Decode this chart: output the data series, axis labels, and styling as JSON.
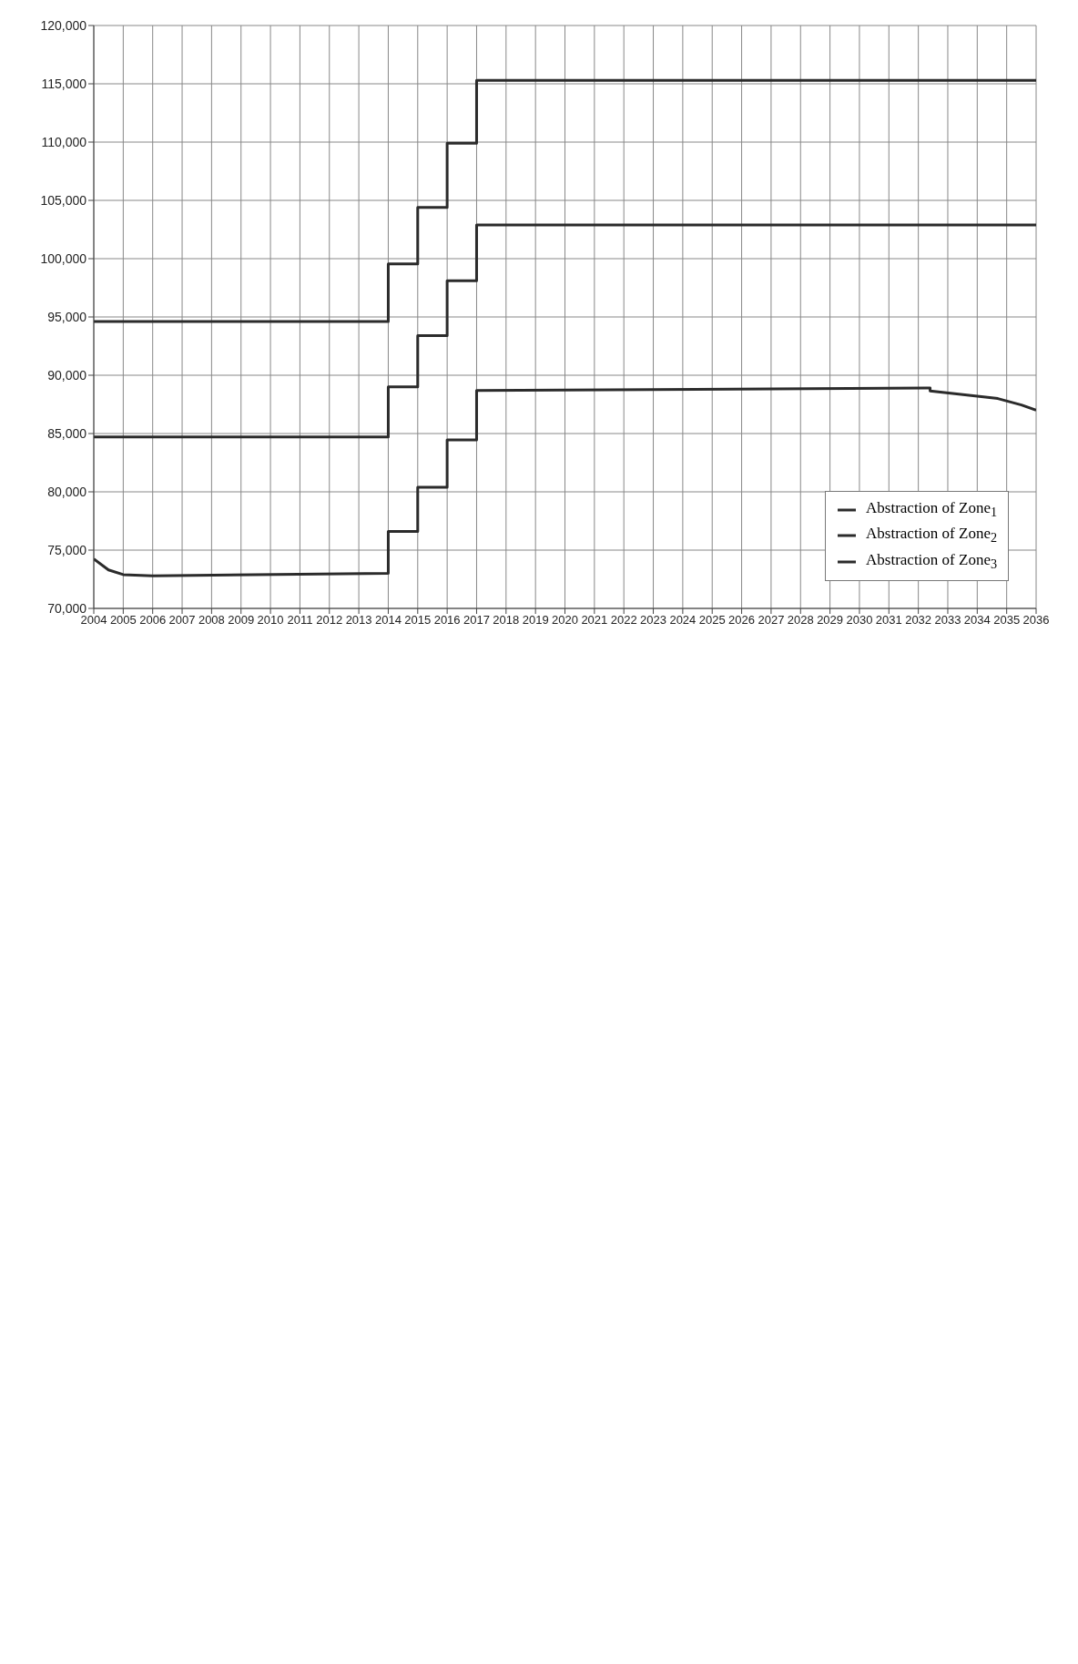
{
  "chart_data": {
    "type": "line",
    "series": [
      {
        "name": "Abstraction of Zone$_{1}$",
        "color": "#2b2b2b",
        "x": [
          2004,
          2014,
          2014,
          2015,
          2015,
          2016,
          2016,
          2017,
          2017,
          2036
        ],
        "values": [
          94600,
          94600,
          99550,
          99550,
          104400,
          104400,
          109900,
          109900,
          115300,
          115300
        ]
      },
      {
        "name": "Abstraction of Zone$_{2}$",
        "color": "#2b2b2b",
        "x": [
          2004,
          2014,
          2014,
          2015,
          2015,
          2016,
          2016,
          2017,
          2017,
          2036
        ],
        "values": [
          84700,
          84700,
          89000,
          89000,
          93400,
          93400,
          98100,
          98100,
          102900,
          102900
        ]
      },
      {
        "name": "Abstraction of Zone$_{3}$",
        "color": "#2b2b2b",
        "x": [
          2004,
          2004.5,
          2005,
          2006,
          2014,
          2014,
          2015,
          2015,
          2016,
          2016,
          2017,
          2017,
          2032.4,
          2032.4,
          2034.7,
          2035.5,
          2036
        ],
        "values": [
          74250,
          73300,
          72900,
          72800,
          73000,
          76600,
          76600,
          80400,
          80400,
          84450,
          84450,
          88700,
          88900,
          88650,
          88000,
          87450,
          87000
        ]
      }
    ],
    "xlim": [
      2004,
      2036
    ],
    "xticks": [
      2004,
      2005,
      2006,
      2007,
      2008,
      2009,
      2010,
      2011,
      2012,
      2013,
      2014,
      2015,
      2016,
      2017,
      2018,
      2019,
      2020,
      2021,
      2022,
      2023,
      2024,
      2025,
      2026,
      2027,
      2028,
      2029,
      2030,
      2031,
      2032,
      2033,
      2034,
      2035,
      2036
    ],
    "ylim": [
      70000,
      120000
    ],
    "yticks": [
      {
        "value": 70000,
        "label": "70,000"
      },
      {
        "value": 75000,
        "label": "75,000"
      },
      {
        "value": 80000,
        "label": "80,000"
      },
      {
        "value": 85000,
        "label": "85,000"
      },
      {
        "value": 90000,
        "label": "90,000"
      },
      {
        "value": 95000,
        "label": "95,000"
      },
      {
        "value": 100000,
        "label": "100,000"
      },
      {
        "value": 105000,
        "label": "105,000"
      },
      {
        "value": 110000,
        "label": "110,000"
      },
      {
        "value": 115000,
        "label": "115,000"
      },
      {
        "value": 120000,
        "label": "120,000"
      }
    ],
    "grid": true,
    "legend": "bottom right",
    "marker": "none",
    "line_style": "solid"
  }
}
